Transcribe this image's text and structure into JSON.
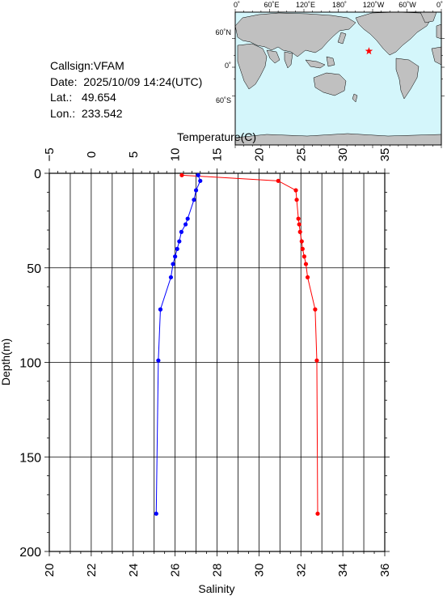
{
  "info": {
    "callsign": "Callsign:VFAM",
    "date": "Date:  2025/10/09 14:24(UTC)",
    "lat": "Lat.:   49.654",
    "lon": "Lon.:  233.542"
  },
  "map": {
    "top_ticks": [
      "0˚",
      "60˚E",
      "120˚E",
      "180˚",
      "120˚W",
      "60˚W",
      "0˚"
    ],
    "left_ticks": [
      "60˚N",
      "0˚",
      "60˚S"
    ],
    "ocean_color": "#d4f6fb",
    "land_color": "#c0c0c0",
    "marker_color": "#ff0000",
    "marker": {
      "lon": 233.542,
      "lat": 49.654
    }
  },
  "chart_data": {
    "type": "line",
    "temperature_axis": {
      "label": "Temperature(C)",
      "range": [
        -5,
        35
      ],
      "ticks": [
        "−5",
        "0",
        "5",
        "10",
        "15",
        "20",
        "25",
        "30",
        "35"
      ]
    },
    "salinity_axis": {
      "label": "Salinity",
      "range": [
        20,
        36
      ],
      "ticks": [
        "20",
        "22",
        "24",
        "26",
        "28",
        "30",
        "32",
        "34",
        "36"
      ]
    },
    "depth_axis": {
      "label": "Depth(m)",
      "range": [
        0,
        200
      ],
      "ticks": [
        "0",
        "50",
        "100",
        "150",
        "200"
      ]
    },
    "grid": true,
    "series": [
      {
        "quantity": "temperature",
        "color": "#ff0000",
        "points": [
          [
            10.8,
            1
          ],
          [
            22.3,
            4
          ],
          [
            24.4,
            9
          ],
          [
            24.5,
            14
          ],
          [
            24.7,
            24
          ],
          [
            24.8,
            27
          ],
          [
            24.9,
            31
          ],
          [
            25.1,
            36
          ],
          [
            25.2,
            40
          ],
          [
            25.4,
            44
          ],
          [
            25.6,
            48
          ],
          [
            25.8,
            55
          ],
          [
            26.7,
            72
          ],
          [
            26.9,
            99
          ],
          [
            27.0,
            180
          ]
        ]
      },
      {
        "quantity": "salinity",
        "color": "#0000ff",
        "points": [
          [
            27.1,
            1
          ],
          [
            27.2,
            4
          ],
          [
            27.0,
            9
          ],
          [
            26.9,
            14
          ],
          [
            26.6,
            24
          ],
          [
            26.5,
            27
          ],
          [
            26.3,
            31
          ],
          [
            26.2,
            36
          ],
          [
            26.1,
            40
          ],
          [
            26.0,
            44
          ],
          [
            25.9,
            48
          ],
          [
            25.8,
            55
          ],
          [
            25.3,
            72
          ],
          [
            25.2,
            99
          ],
          [
            25.1,
            180
          ]
        ]
      }
    ]
  }
}
